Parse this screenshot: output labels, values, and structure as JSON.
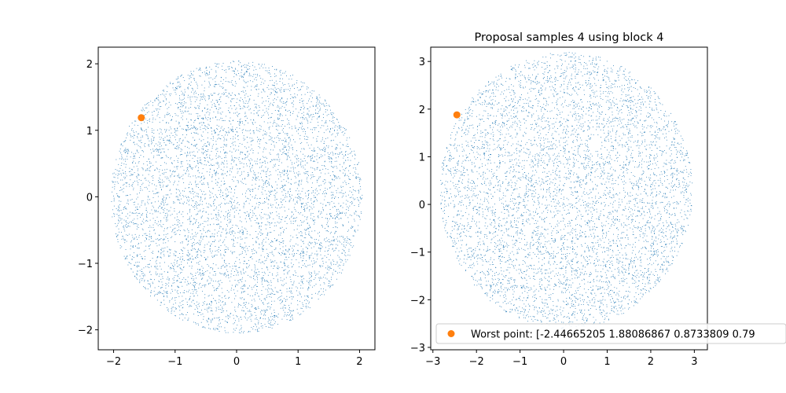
{
  "chart_data": [
    {
      "type": "scatter",
      "title": "",
      "xlabel": "",
      "ylabel": "",
      "xlim": [
        -2.25,
        2.25
      ],
      "ylim": [
        -2.3,
        2.25
      ],
      "xticks": [
        -2,
        -1,
        0,
        1,
        2
      ],
      "yticks": [
        -2,
        -1,
        0,
        1,
        2
      ],
      "series": [
        {
          "role": "samples",
          "marker": "pixel",
          "color": "#1f77b4",
          "distribution": "uniform disk",
          "center": [
            0,
            0
          ],
          "radius": 2.05,
          "count": 6000
        },
        {
          "role": "highlight",
          "marker": "circle",
          "color": "#ff7f0e",
          "x": [
            -1.55
          ],
          "y": [
            1.19
          ]
        }
      ]
    },
    {
      "type": "scatter",
      "title": "Proposal samples 4 using block 4",
      "xlabel": "",
      "ylabel": "",
      "xlim": [
        -3.05,
        3.3
      ],
      "ylim": [
        -3.05,
        3.3
      ],
      "xticks": [
        -3,
        -2,
        -1,
        0,
        1,
        2,
        3
      ],
      "yticks": [
        -3,
        -2,
        -1,
        0,
        1,
        2,
        3
      ],
      "series": [
        {
          "role": "samples",
          "marker": "pixel",
          "color": "#1f77b4",
          "distribution": "uniform disk",
          "center": [
            0.05,
            0.3
          ],
          "radius": 2.9,
          "count": 6000
        },
        {
          "name": "Worst point: [-2.44665205  1.88086867  0.8733809   0.79",
          "role": "highlight",
          "marker": "circle",
          "color": "#ff7f0e",
          "x": [
            -2.45
          ],
          "y": [
            1.88
          ]
        }
      ],
      "legend_loc": "lower right"
    }
  ]
}
